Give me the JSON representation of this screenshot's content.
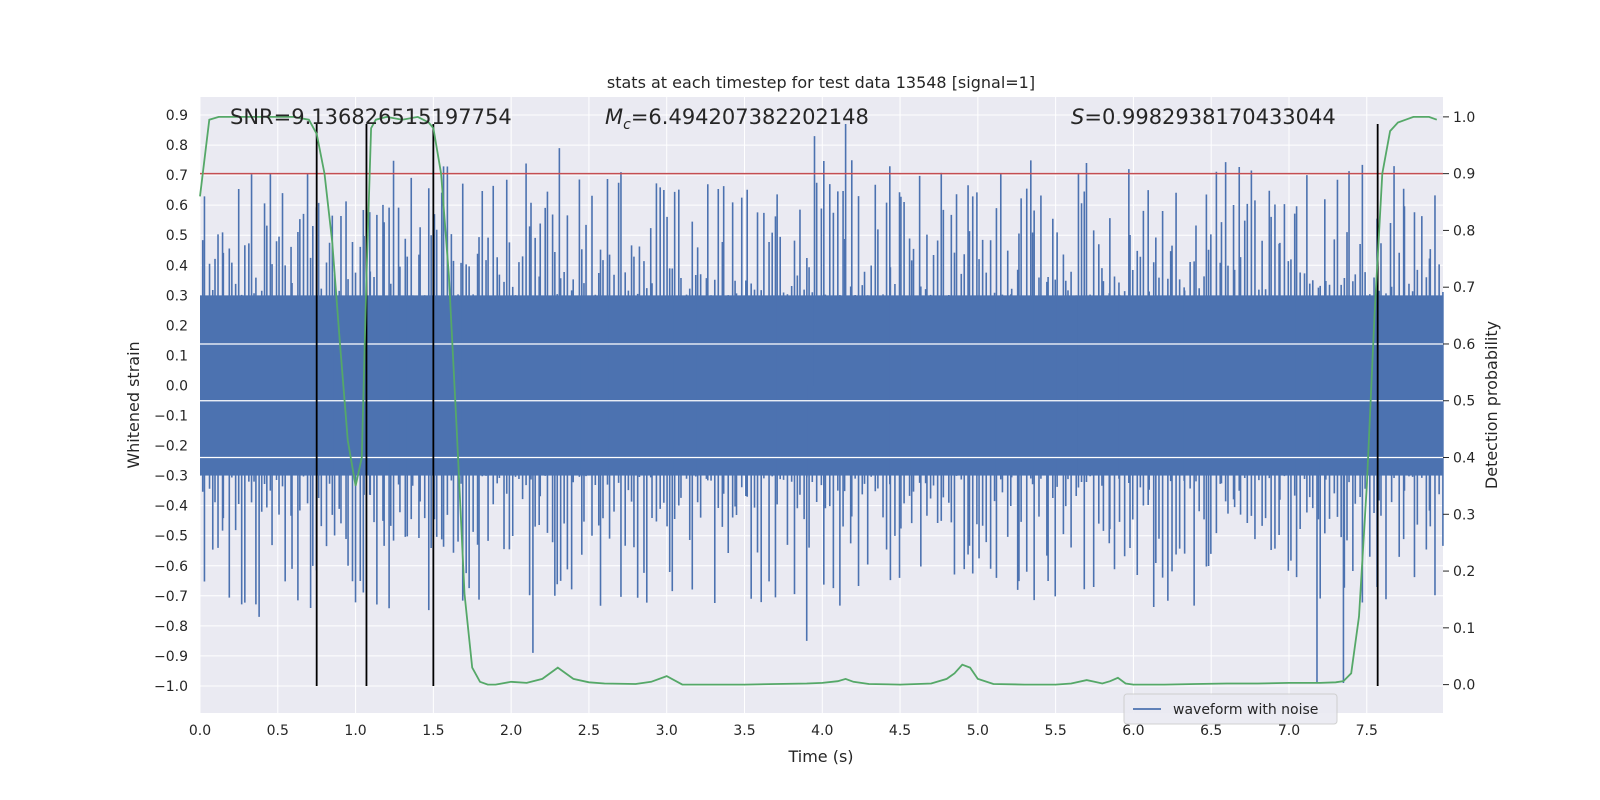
{
  "chart_data": {
    "type": "line",
    "title": "stats at each timestep for test data 13548 [signal=1]",
    "xlabel": "Time (s)",
    "ylabel_left": "Whitened strain",
    "ylabel_right": "Detection probability",
    "xlim": [
      0.0,
      7.99
    ],
    "ylim_left": [
      -1.09,
      0.96
    ],
    "ylim_right": [
      -0.05,
      1.035
    ],
    "x_ticks": [
      0.0,
      0.5,
      1.0,
      1.5,
      2.0,
      2.5,
      3.0,
      3.5,
      4.0,
      4.5,
      5.0,
      5.5,
      6.0,
      6.5,
      7.0,
      7.5
    ],
    "x_tick_labels": [
      "0.0",
      "0.5",
      "1.0",
      "1.5",
      "2.0",
      "2.5",
      "3.0",
      "3.5",
      "4.0",
      "4.5",
      "5.0",
      "5.5",
      "6.0",
      "6.5",
      "7.0",
      "7.5"
    ],
    "y_left_ticks": [
      0.9,
      0.8,
      0.7,
      0.6,
      0.5,
      0.4,
      0.3,
      0.2,
      0.1,
      0.0,
      -0.1,
      -0.2,
      -0.3,
      -0.4,
      -0.5,
      -0.6,
      -0.7,
      -0.8,
      -0.9,
      -1.0
    ],
    "y_left_tick_labels": [
      "0.9",
      "0.8",
      "0.7",
      "0.6",
      "0.5",
      "0.4",
      "0.3",
      "0.2",
      "0.1",
      "0.0",
      "−0.1",
      "−0.2",
      "−0.3",
      "−0.4",
      "−0.5",
      "−0.6",
      "−0.7",
      "−0.8",
      "−0.9",
      "−1.0"
    ],
    "y_right_ticks": [
      1.0,
      0.9,
      0.8,
      0.7,
      0.6,
      0.5,
      0.4,
      0.3,
      0.2,
      0.1,
      0.0
    ],
    "y_right_tick_labels": [
      "1.0",
      "0.9",
      "0.8",
      "0.7",
      "0.6",
      "0.5",
      "0.4",
      "0.3",
      "0.2",
      "0.1",
      "0.0"
    ],
    "annotations": {
      "snr": "SNR=9.136826515197754",
      "mc_symbol": "M",
      "mc_sub": "c",
      "mc_value": "=6.494207382202148",
      "s_symbol": "S",
      "s_value": "=0.9982938170433044"
    },
    "threshold": {
      "value": 0.9,
      "axis": "right",
      "color": "#c44e52"
    },
    "vertical_markers": {
      "x": [
        0.75,
        1.07,
        1.5,
        7.57
      ],
      "y_range_left": [
        -1.0,
        0.87
      ],
      "color": "#000000"
    },
    "waveform": {
      "name": "waveform with noise",
      "color": "#4c72b0",
      "core_band": [
        -0.3,
        0.3
      ],
      "spike_count": 380,
      "seed": 13548,
      "notable_peaks": [
        {
          "x": 2.31,
          "y": 0.79
        },
        {
          "x": 3.95,
          "y": 0.83
        },
        {
          "x": 4.15,
          "y": 0.87
        },
        {
          "x": 0.38,
          "y": -0.77
        },
        {
          "x": 2.14,
          "y": -0.89
        },
        {
          "x": 3.9,
          "y": -0.85
        },
        {
          "x": 7.18,
          "y": -0.99
        },
        {
          "x": 7.35,
          "y": -0.99
        }
      ]
    },
    "probability": {
      "name": "detection probability",
      "color": "#55a868",
      "x": [
        0.0,
        0.06,
        0.12,
        0.2,
        0.3,
        0.4,
        0.5,
        0.6,
        0.7,
        0.75,
        0.8,
        0.85,
        0.9,
        0.95,
        1.0,
        1.04,
        1.07,
        1.1,
        1.13,
        1.2,
        1.3,
        1.4,
        1.47,
        1.5,
        1.55,
        1.6,
        1.65,
        1.7,
        1.75,
        1.8,
        1.85,
        1.9,
        2.0,
        2.1,
        2.2,
        2.3,
        2.4,
        2.5,
        2.6,
        2.8,
        2.9,
        3.0,
        3.1,
        3.3,
        3.5,
        3.7,
        3.9,
        4.0,
        4.1,
        4.15,
        4.2,
        4.3,
        4.5,
        4.7,
        4.8,
        4.85,
        4.9,
        4.95,
        5.0,
        5.1,
        5.3,
        5.5,
        5.6,
        5.7,
        5.75,
        5.8,
        5.85,
        5.9,
        5.95,
        6.0,
        6.2,
        6.4,
        6.6,
        6.8,
        7.0,
        7.2,
        7.3,
        7.35,
        7.4,
        7.45,
        7.5,
        7.55,
        7.6,
        7.65,
        7.7,
        7.75,
        7.8,
        7.85,
        7.9,
        7.95
      ],
      "y": [
        0.86,
        0.995,
        1.0,
        1.0,
        1.0,
        1.0,
        1.0,
        1.0,
        0.995,
        0.97,
        0.9,
        0.78,
        0.6,
        0.43,
        0.35,
        0.4,
        0.72,
        0.98,
        0.995,
        1.0,
        0.995,
        1.0,
        0.99,
        0.98,
        0.9,
        0.72,
        0.45,
        0.16,
        0.03,
        0.005,
        0.0,
        0.0,
        0.005,
        0.003,
        0.01,
        0.03,
        0.01,
        0.004,
        0.002,
        0.001,
        0.005,
        0.015,
        0.0,
        0.0,
        0.0,
        0.001,
        0.002,
        0.003,
        0.006,
        0.01,
        0.005,
        0.001,
        0.0,
        0.002,
        0.01,
        0.02,
        0.035,
        0.03,
        0.01,
        0.001,
        0.0,
        0.0,
        0.002,
        0.008,
        0.005,
        0.002,
        0.006,
        0.012,
        0.002,
        0.0,
        0.0,
        0.001,
        0.002,
        0.002,
        0.003,
        0.003,
        0.004,
        0.006,
        0.02,
        0.12,
        0.35,
        0.65,
        0.9,
        0.975,
        0.99,
        0.995,
        1.0,
        1.0,
        1.0,
        0.995
      ]
    },
    "legend": {
      "label": "waveform with noise",
      "position": "lower-right"
    },
    "grid": true,
    "background": "#eaeaf2"
  }
}
